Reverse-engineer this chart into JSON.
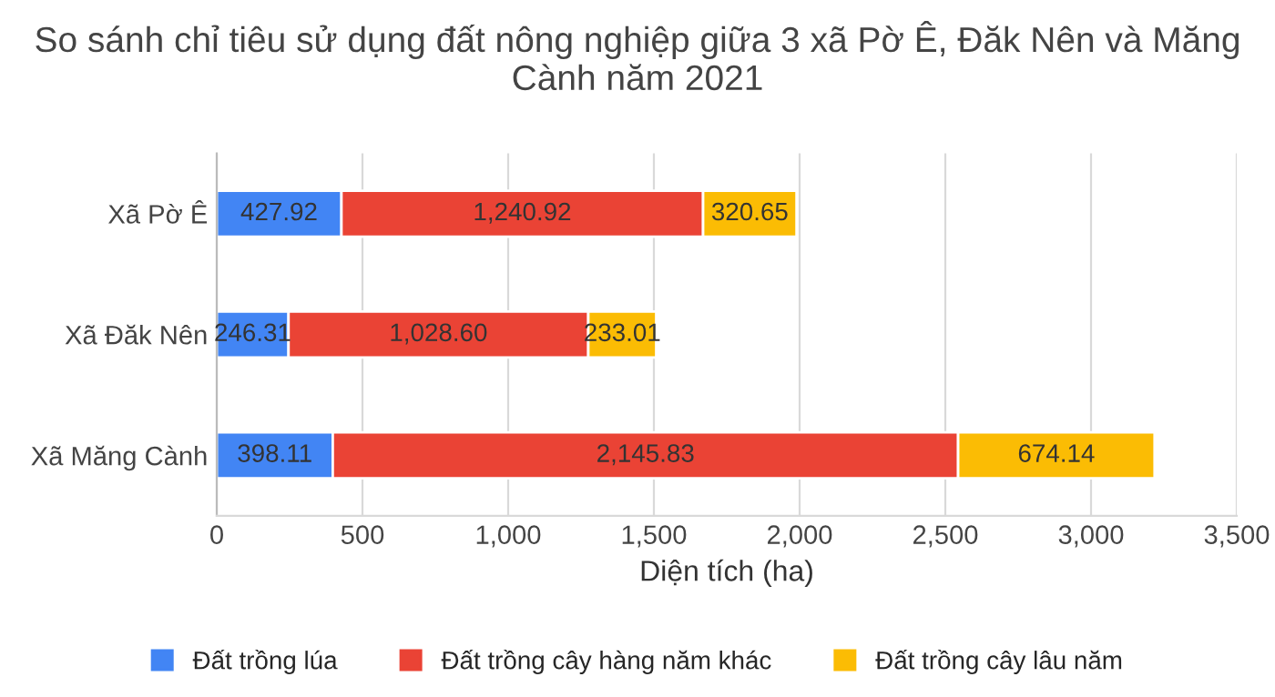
{
  "chart_data": {
    "type": "bar",
    "orientation": "horizontal",
    "stacked": true,
    "title": "So sánh chỉ tiêu sử dụng đất nông nghiệp giữa 3 xã Pờ Ê, Đăk Nên và Măng Cành năm 2021",
    "xlabel": "Diện tích (ha)",
    "categories": [
      "Xã Pờ Ê",
      "Xã Đăk Nên",
      "Xã Măng Cành"
    ],
    "series": [
      {
        "name": "Đất trồng lúa",
        "color": "#4285f4",
        "values": [
          427.92,
          246.31,
          398.11
        ],
        "value_labels": [
          "427.92",
          "246.31",
          "398.11"
        ]
      },
      {
        "name": "Đất trồng cây hàng năm khác",
        "color": "#ea4335",
        "values": [
          1240.92,
          1028.6,
          2145.83
        ],
        "value_labels": [
          "1,240.92",
          "1,028.60",
          "2,145.83"
        ]
      },
      {
        "name": "Đất trồng cây lâu năm",
        "color": "#fbbc04",
        "values": [
          320.65,
          233.01,
          674.14
        ],
        "value_labels": [
          "320.65",
          "233.01",
          "674.14"
        ]
      }
    ],
    "xlim": [
      0,
      3500
    ],
    "xticks": [
      0,
      500,
      {
        "value": 1000,
        "label": "1,000"
      },
      {
        "value": 1500,
        "label": "1,500"
      },
      {
        "value": 2000,
        "label": "2,000"
      },
      {
        "value": 2500,
        "label": "2,500"
      },
      {
        "value": 3000,
        "label": "3,000"
      },
      {
        "value": 3500,
        "label": "3,500"
      }
    ],
    "grid": "x",
    "legend": "bottom"
  }
}
